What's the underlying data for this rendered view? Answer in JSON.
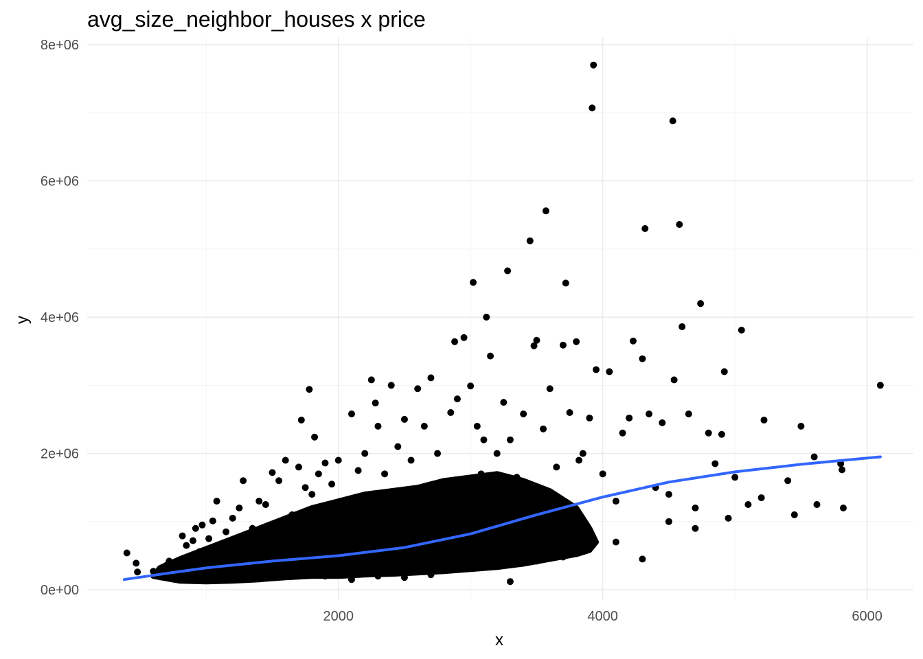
{
  "chart_data": {
    "type": "scatter",
    "title": "avg_size_neighbor_houses x price",
    "xlabel": "x",
    "ylabel": "y",
    "xlim": [
      100,
      6350
    ],
    "ylim": [
      -150000,
      8100000
    ],
    "x_ticks": [
      2000,
      4000,
      6000
    ],
    "x_tick_labels": [
      "2000",
      "4000",
      "6000"
    ],
    "y_ticks": [
      0,
      2000000,
      4000000,
      6000000,
      8000000
    ],
    "y_tick_labels": [
      "0e+00",
      "2e+06",
      "4e+06",
      "6e+06",
      "8e+06"
    ],
    "grid": true,
    "legend": "none",
    "point_color": "#000000",
    "smooth_color": "#3366ff",
    "series": [
      {
        "kind": "points",
        "points": [
          [
            400,
            540000
          ],
          [
            470,
            390000
          ],
          [
            480,
            260000
          ],
          [
            600,
            270000
          ],
          [
            650,
            230000
          ],
          [
            700,
            360000
          ],
          [
            720,
            420000
          ],
          [
            730,
            300000
          ],
          [
            750,
            330000
          ],
          [
            780,
            380000
          ],
          [
            800,
            250000
          ],
          [
            820,
            790000
          ],
          [
            850,
            650000
          ],
          [
            870,
            430000
          ],
          [
            900,
            720000
          ],
          [
            920,
            900000
          ],
          [
            950,
            560000
          ],
          [
            970,
            950000
          ],
          [
            1000,
            330000
          ],
          [
            1020,
            750000
          ],
          [
            1050,
            1010000
          ],
          [
            1080,
            1300000
          ],
          [
            1100,
            600000
          ],
          [
            1150,
            850000
          ],
          [
            1200,
            1050000
          ],
          [
            1250,
            1200000
          ],
          [
            1280,
            1600000
          ],
          [
            1300,
            450000
          ],
          [
            1350,
            900000
          ],
          [
            1400,
            1300000
          ],
          [
            1450,
            1250000
          ],
          [
            1500,
            1720000
          ],
          [
            1550,
            1600000
          ],
          [
            1600,
            1900000
          ],
          [
            1650,
            1100000
          ],
          [
            1700,
            1800000
          ],
          [
            1720,
            2490000
          ],
          [
            1750,
            1500000
          ],
          [
            1780,
            2940000
          ],
          [
            1800,
            1400000
          ],
          [
            1820,
            2240000
          ],
          [
            1850,
            1700000
          ],
          [
            1900,
            1860000
          ],
          [
            1950,
            1550000
          ],
          [
            2000,
            1900000
          ],
          [
            2050,
            1300000
          ],
          [
            2100,
            2580000
          ],
          [
            2150,
            1750000
          ],
          [
            2200,
            2000000
          ],
          [
            2250,
            3080000
          ],
          [
            2280,
            2740000
          ],
          [
            2300,
            2400000
          ],
          [
            2350,
            1700000
          ],
          [
            2400,
            3000000
          ],
          [
            2450,
            2100000
          ],
          [
            2500,
            2500000
          ],
          [
            2550,
            1900000
          ],
          [
            2600,
            2950000
          ],
          [
            2650,
            2400000
          ],
          [
            2700,
            3110000
          ],
          [
            2750,
            2000000
          ],
          [
            2850,
            2600000
          ],
          [
            2880,
            3640000
          ],
          [
            2900,
            2800000
          ],
          [
            2950,
            3700000
          ],
          [
            3000,
            2990000
          ],
          [
            3020,
            4510000
          ],
          [
            3050,
            2400000
          ],
          [
            3080,
            1700000
          ],
          [
            3100,
            2200000
          ],
          [
            3120,
            4000000
          ],
          [
            3150,
            3430000
          ],
          [
            3200,
            2000000
          ],
          [
            3250,
            2750000
          ],
          [
            3280,
            4680000
          ],
          [
            3300,
            2200000
          ],
          [
            3350,
            1650000
          ],
          [
            3400,
            2580000
          ],
          [
            3450,
            5120000
          ],
          [
            3480,
            3580000
          ],
          [
            3500,
            3660000
          ],
          [
            3550,
            2360000
          ],
          [
            3570,
            5560000
          ],
          [
            3600,
            2950000
          ],
          [
            3650,
            1800000
          ],
          [
            3700,
            3590000
          ],
          [
            3720,
            4500000
          ],
          [
            3750,
            2600000
          ],
          [
            3800,
            3640000
          ],
          [
            3820,
            1900000
          ],
          [
            3850,
            2000000
          ],
          [
            3900,
            2520000
          ],
          [
            3920,
            7070000
          ],
          [
            3930,
            7700000
          ],
          [
            3950,
            3230000
          ],
          [
            4000,
            1700000
          ],
          [
            4050,
            3200000
          ],
          [
            4100,
            1300000
          ],
          [
            4150,
            2300000
          ],
          [
            4200,
            2520000
          ],
          [
            4230,
            3650000
          ],
          [
            4300,
            3390000
          ],
          [
            4320,
            5300000
          ],
          [
            4350,
            2580000
          ],
          [
            4400,
            1500000
          ],
          [
            4450,
            2450000
          ],
          [
            4500,
            1400000
          ],
          [
            4530,
            6880000
          ],
          [
            4540,
            3080000
          ],
          [
            4580,
            5360000
          ],
          [
            4600,
            3860000
          ],
          [
            4650,
            2580000
          ],
          [
            4700,
            1200000
          ],
          [
            4740,
            4200000
          ],
          [
            4800,
            2300000
          ],
          [
            4850,
            1850000
          ],
          [
            4900,
            2280000
          ],
          [
            4920,
            3200000
          ],
          [
            4950,
            1050000
          ],
          [
            5000,
            1650000
          ],
          [
            5050,
            3810000
          ],
          [
            5100,
            1250000
          ],
          [
            5200,
            1350000
          ],
          [
            5220,
            2490000
          ],
          [
            5400,
            1600000
          ],
          [
            5450,
            1100000
          ],
          [
            5500,
            2400000
          ],
          [
            5600,
            1950000
          ],
          [
            5620,
            1250000
          ],
          [
            5800,
            1850000
          ],
          [
            5810,
            1760000
          ],
          [
            5820,
            1200000
          ],
          [
            6100,
            3000000
          ],
          [
            1700,
            250000
          ],
          [
            1900,
            200000
          ],
          [
            2100,
            150000
          ],
          [
            2300,
            200000
          ],
          [
            2500,
            180000
          ],
          [
            2700,
            220000
          ],
          [
            2900,
            300000
          ],
          [
            3100,
            350000
          ],
          [
            3300,
            120000
          ],
          [
            3500,
            420000
          ],
          [
            3700,
            480000
          ],
          [
            3900,
            600000
          ],
          [
            4100,
            700000
          ],
          [
            4300,
            450000
          ],
          [
            4500,
            1000000
          ],
          [
            4700,
            900000
          ]
        ]
      },
      {
        "kind": "bulk",
        "polygon": [
          [
            600,
            200000
          ],
          [
            800,
            130000
          ],
          [
            1000,
            120000
          ],
          [
            1200,
            130000
          ],
          [
            1400,
            150000
          ],
          [
            1600,
            180000
          ],
          [
            1800,
            200000
          ],
          [
            2000,
            200000
          ],
          [
            2200,
            220000
          ],
          [
            2400,
            230000
          ],
          [
            2600,
            250000
          ],
          [
            2800,
            270000
          ],
          [
            3000,
            300000
          ],
          [
            3200,
            330000
          ],
          [
            3400,
            380000
          ],
          [
            3600,
            450000
          ],
          [
            3800,
            520000
          ],
          [
            3900,
            580000
          ],
          [
            3950,
            700000
          ],
          [
            3900,
            900000
          ],
          [
            3800,
            1200000
          ],
          [
            3600,
            1450000
          ],
          [
            3400,
            1600000
          ],
          [
            3200,
            1700000
          ],
          [
            3000,
            1650000
          ],
          [
            2800,
            1600000
          ],
          [
            2600,
            1500000
          ],
          [
            2400,
            1450000
          ],
          [
            2200,
            1400000
          ],
          [
            2000,
            1300000
          ],
          [
            1800,
            1200000
          ],
          [
            1600,
            1050000
          ],
          [
            1400,
            900000
          ],
          [
            1200,
            750000
          ],
          [
            1000,
            600000
          ],
          [
            800,
            450000
          ],
          [
            650,
            320000
          ]
        ]
      },
      {
        "kind": "smooth",
        "points": [
          [
            380,
            150000
          ],
          [
            700,
            240000
          ],
          [
            1000,
            320000
          ],
          [
            1500,
            420000
          ],
          [
            2000,
            500000
          ],
          [
            2500,
            620000
          ],
          [
            3000,
            820000
          ],
          [
            3500,
            1100000
          ],
          [
            4000,
            1360000
          ],
          [
            4500,
            1580000
          ],
          [
            5000,
            1730000
          ],
          [
            5500,
            1840000
          ],
          [
            6100,
            1950000
          ]
        ]
      }
    ]
  }
}
